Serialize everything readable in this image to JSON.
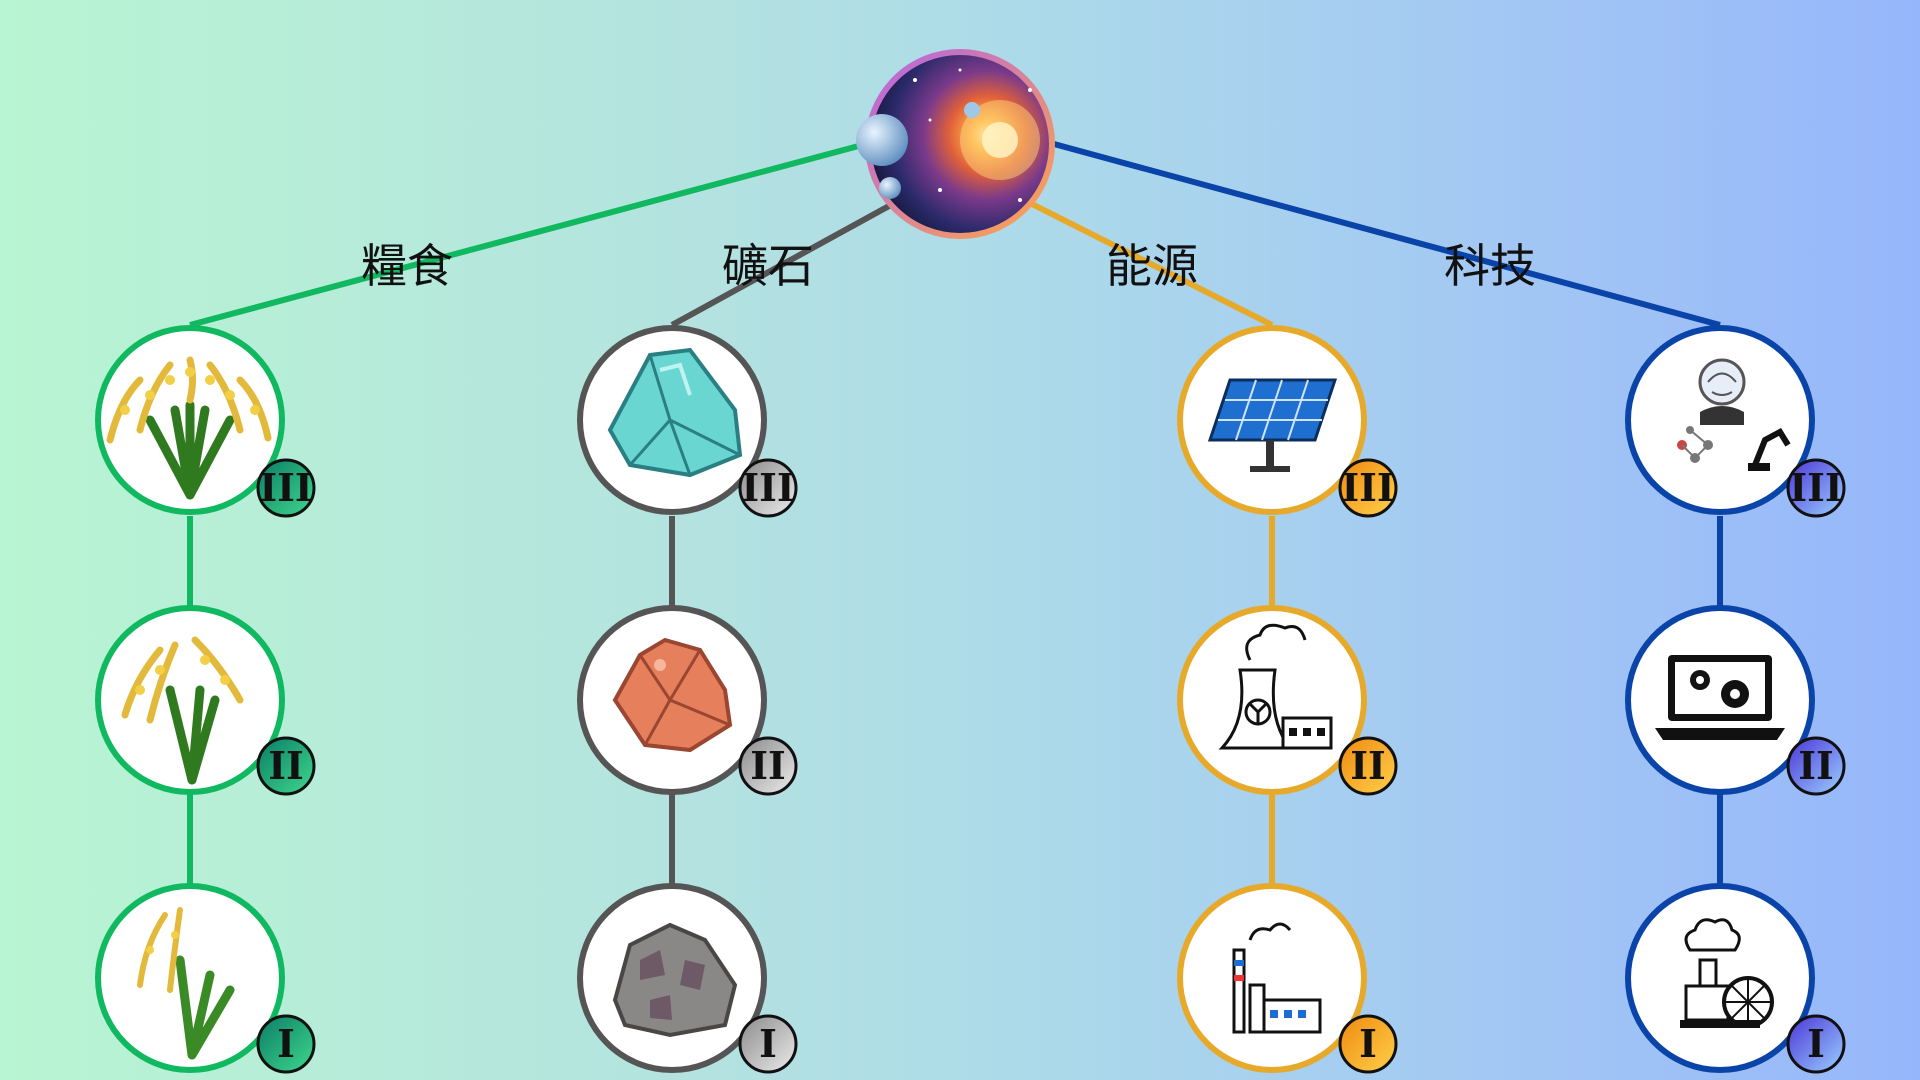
{
  "root": {
    "name": "universe-root"
  },
  "branches": [
    {
      "key": "food",
      "label": "糧食",
      "color": "#10b860",
      "badge_gradient": [
        "#0a8a5a",
        "#38d590"
      ],
      "tiers": [
        {
          "roman": "III",
          "icon": "rice-plant-lush-icon"
        },
        {
          "roman": "II",
          "icon": "rice-plant-medium-icon"
        },
        {
          "roman": "I",
          "icon": "rice-plant-young-icon"
        }
      ]
    },
    {
      "key": "mineral",
      "label": "礦石",
      "color": "#555555",
      "badge_gradient": [
        "#9a9a9a",
        "#e6e6e6"
      ],
      "tiers": [
        {
          "roman": "III",
          "icon": "turquoise-crystal-icon"
        },
        {
          "roman": "II",
          "icon": "copper-ore-icon"
        },
        {
          "roman": "I",
          "icon": "grey-rock-icon"
        }
      ]
    },
    {
      "key": "energy",
      "label": "能源",
      "color": "#e7a92a",
      "badge_gradient": [
        "#f08a14",
        "#ffd24a"
      ],
      "tiers": [
        {
          "roman": "III",
          "icon": "solar-panel-icon"
        },
        {
          "roman": "II",
          "icon": "nuclear-plant-icon"
        },
        {
          "roman": "I",
          "icon": "factory-icon"
        }
      ]
    },
    {
      "key": "tech",
      "label": "科技",
      "color": "#0b44a8",
      "badge_gradient": [
        "#5b3fe0",
        "#8fc8ff"
      ],
      "tiers": [
        {
          "roman": "III",
          "icon": "ai-robotics-icon"
        },
        {
          "roman": "II",
          "icon": "laptop-gears-icon"
        },
        {
          "roman": "I",
          "icon": "steam-engine-icon"
        }
      ]
    }
  ]
}
